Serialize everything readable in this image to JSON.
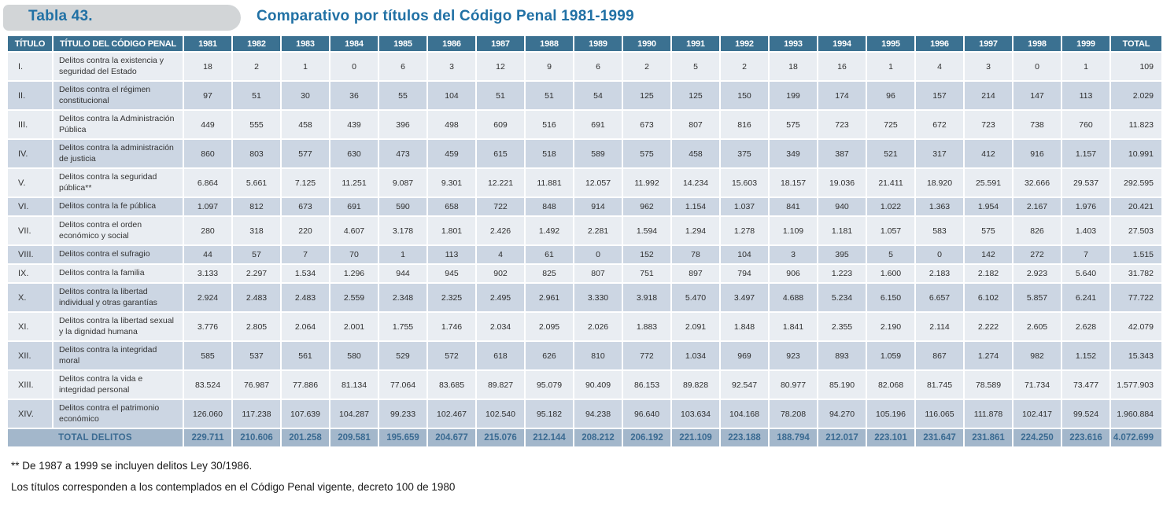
{
  "header": {
    "table_label": "Tabla 43.",
    "title": "Comparativo por títulos del Código Penal 1981-1999"
  },
  "table": {
    "columns": {
      "titulo": "TÍTULO",
      "codigo_penal": "TÍTULO DEL CÓDIGO PENAL",
      "years": [
        "1981",
        "1982",
        "1983",
        "1984",
        "1985",
        "1986",
        "1987",
        "1988",
        "1989",
        "1990",
        "1991",
        "1992",
        "1993",
        "1994",
        "1995",
        "1996",
        "1997",
        "1998",
        "1999"
      ],
      "total": "TOTAL"
    },
    "rows": [
      {
        "numeral": "I.",
        "title": "Delitos contra la existencia y seguridad del Estado",
        "values": [
          "18",
          "2",
          "1",
          "0",
          "6",
          "3",
          "12",
          "9",
          "6",
          "2",
          "5",
          "2",
          "18",
          "16",
          "1",
          "4",
          "3",
          "0",
          "1"
        ],
        "total": "109"
      },
      {
        "numeral": "II.",
        "title": "Delitos contra el régimen constitucional",
        "values": [
          "97",
          "51",
          "30",
          "36",
          "55",
          "104",
          "51",
          "51",
          "54",
          "125",
          "125",
          "150",
          "199",
          "174",
          "96",
          "157",
          "214",
          "147",
          "113"
        ],
        "total": "2.029"
      },
      {
        "numeral": "III.",
        "title": "Delitos contra la Administración Pública",
        "values": [
          "449",
          "555",
          "458",
          "439",
          "396",
          "498",
          "609",
          "516",
          "691",
          "673",
          "807",
          "816",
          "575",
          "723",
          "725",
          "672",
          "723",
          "738",
          "760"
        ],
        "total": "11.823"
      },
      {
        "numeral": "IV.",
        "title": "Delitos contra la administración de justicia",
        "values": [
          "860",
          "803",
          "577",
          "630",
          "473",
          "459",
          "615",
          "518",
          "589",
          "575",
          "458",
          "375",
          "349",
          "387",
          "521",
          "317",
          "412",
          "916",
          "1.157"
        ],
        "total": "10.991"
      },
      {
        "numeral": "V.",
        "title": "Delitos contra la seguridad pública**",
        "values": [
          "6.864",
          "5.661",
          "7.125",
          "11.251",
          "9.087",
          "9.301",
          "12.221",
          "11.881",
          "12.057",
          "11.992",
          "14.234",
          "15.603",
          "18.157",
          "19.036",
          "21.411",
          "18.920",
          "25.591",
          "32.666",
          "29.537"
        ],
        "total": "292.595"
      },
      {
        "numeral": "VI.",
        "title": "Delitos contra la fe pública",
        "values": [
          "1.097",
          "812",
          "673",
          "691",
          "590",
          "658",
          "722",
          "848",
          "914",
          "962",
          "1.154",
          "1.037",
          "841",
          "940",
          "1.022",
          "1.363",
          "1.954",
          "2.167",
          "1.976"
        ],
        "total": "20.421"
      },
      {
        "numeral": "VII.",
        "title": "Delitos contra el orden económico y social",
        "values": [
          "280",
          "318",
          "220",
          "4.607",
          "3.178",
          "1.801",
          "2.426",
          "1.492",
          "2.281",
          "1.594",
          "1.294",
          "1.278",
          "1.109",
          "1.181",
          "1.057",
          "583",
          "575",
          "826",
          "1.403"
        ],
        "total": "27.503"
      },
      {
        "numeral": "VIII.",
        "title": "Delitos contra el sufragio",
        "values": [
          "44",
          "57",
          "7",
          "70",
          "1",
          "113",
          "4",
          "61",
          "0",
          "152",
          "78",
          "104",
          "3",
          "395",
          "5",
          "0",
          "142",
          "272",
          "7"
        ],
        "total": "1.515"
      },
      {
        "numeral": "IX.",
        "title": "Delitos contra la familia",
        "values": [
          "3.133",
          "2.297",
          "1.534",
          "1.296",
          "944",
          "945",
          "902",
          "825",
          "807",
          "751",
          "897",
          "794",
          "906",
          "1.223",
          "1.600",
          "2.183",
          "2.182",
          "2.923",
          "5.640"
        ],
        "total": "31.782"
      },
      {
        "numeral": "X.",
        "title": "Delitos contra la libertad individual y otras garantías",
        "values": [
          "2.924",
          "2.483",
          "2.483",
          "2.559",
          "2.348",
          "2.325",
          "2.495",
          "2.961",
          "3.330",
          "3.918",
          "5.470",
          "3.497",
          "4.688",
          "5.234",
          "6.150",
          "6.657",
          "6.102",
          "5.857",
          "6.241"
        ],
        "total": "77.722"
      },
      {
        "numeral": "XI.",
        "title": "Delitos contra la libertad sexual y la dignidad humana",
        "values": [
          "3.776",
          "2.805",
          "2.064",
          "2.001",
          "1.755",
          "1.746",
          "2.034",
          "2.095",
          "2.026",
          "1.883",
          "2.091",
          "1.848",
          "1.841",
          "2.355",
          "2.190",
          "2.114",
          "2.222",
          "2.605",
          "2.628"
        ],
        "total": "42.079"
      },
      {
        "numeral": "XII.",
        "title": "Delitos contra la integridad moral",
        "values": [
          "585",
          "537",
          "561",
          "580",
          "529",
          "572",
          "618",
          "626",
          "810",
          "772",
          "1.034",
          "969",
          "923",
          "893",
          "1.059",
          "867",
          "1.274",
          "982",
          "1.152"
        ],
        "total": "15.343"
      },
      {
        "numeral": "XIII.",
        "title": "Delitos contra la vida e integridad personal",
        "values": [
          "83.524",
          "76.987",
          "77.886",
          "81.134",
          "77.064",
          "83.685",
          "89.827",
          "95.079",
          "90.409",
          "86.153",
          "89.828",
          "92.547",
          "80.977",
          "85.190",
          "82.068",
          "81.745",
          "78.589",
          "71.734",
          "73.477"
        ],
        "total": "1.577.903"
      },
      {
        "numeral": "XIV.",
        "title": "Delitos contra el patrimonio económico",
        "values": [
          "126.060",
          "117.238",
          "107.639",
          "104.287",
          "99.233",
          "102.467",
          "102.540",
          "95.182",
          "94.238",
          "96.640",
          "103.634",
          "104.168",
          "78.208",
          "94.270",
          "105.196",
          "116.065",
          "111.878",
          "102.417",
          "99.524"
        ],
        "total": "1.960.884"
      }
    ],
    "total_row": {
      "label": "TOTAL DELITOS",
      "values": [
        "229.711",
        "210.606",
        "201.258",
        "209.581",
        "195.659",
        "204.677",
        "215.076",
        "212.144",
        "208.212",
        "206.192",
        "221.109",
        "223.188",
        "188.794",
        "212.017",
        "223.101",
        "231.647",
        "231.861",
        "224.250",
        "223.616"
      ],
      "total": "4.072.699"
    }
  },
  "footnotes": [
    "** De 1987 a 1999 se incluyen delitos Ley 30/1986.",
    "Los títulos corresponden a los contemplados en el Código Penal vigente, decreto 100 de 1980"
  ],
  "colors": {
    "header_bg": "#3b7191",
    "row_light": "#e9edf2",
    "row_dark": "#ccd6e3",
    "total_row_bg": "#a3b7cb",
    "total_row_text": "#3b6b92",
    "title_blue": "#2171a5",
    "pill_gray": "#d2d5d7"
  }
}
